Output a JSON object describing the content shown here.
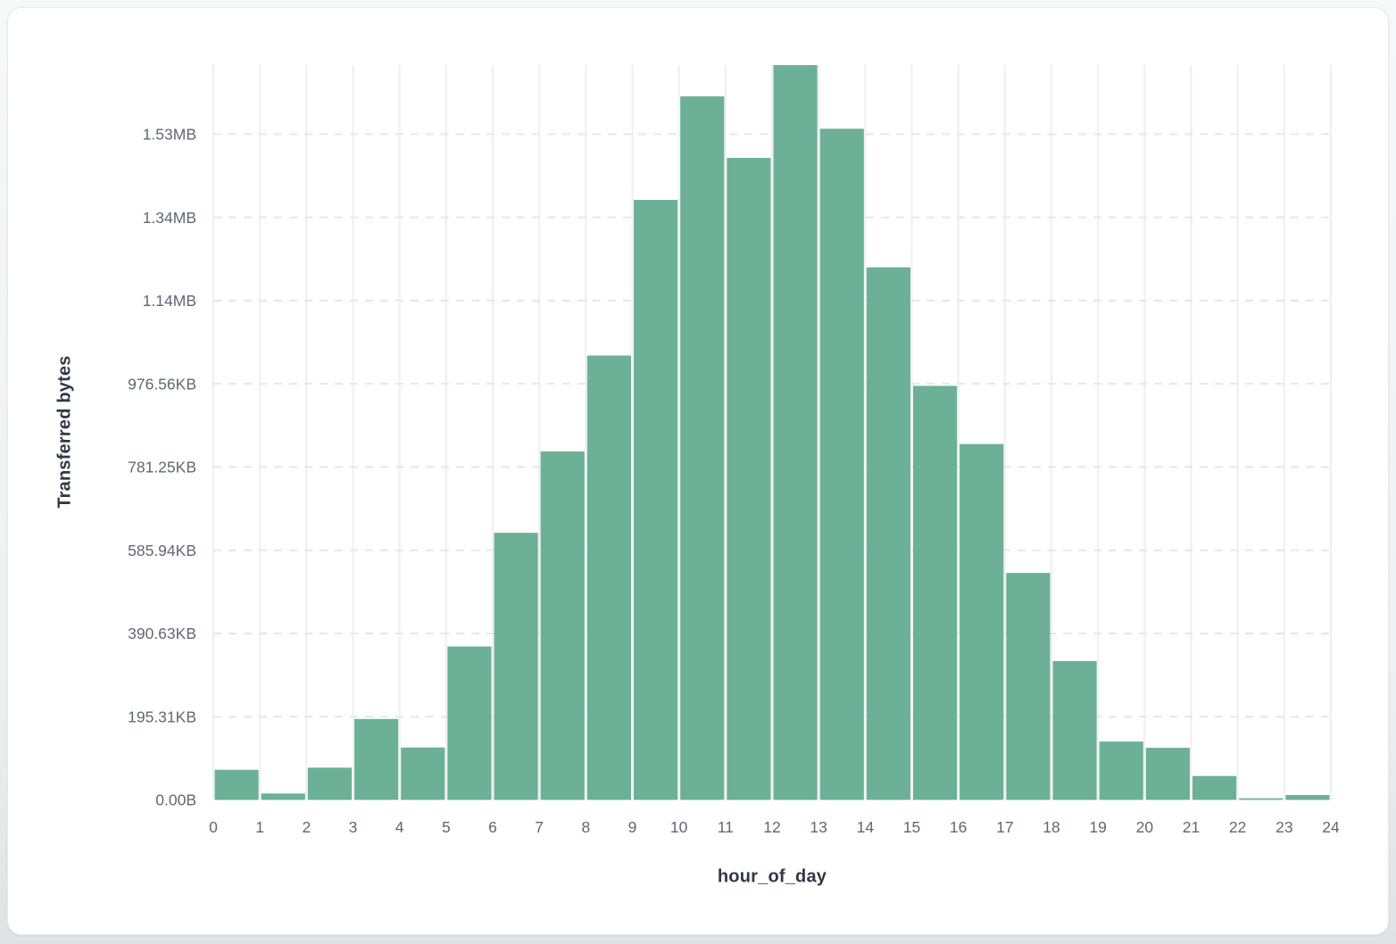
{
  "chart_data": {
    "type": "bar",
    "title": "",
    "xlabel": "hour_of_day",
    "ylabel": "Transferred bytes",
    "x_tick_labels": [
      "0",
      "1",
      "2",
      "3",
      "4",
      "5",
      "6",
      "7",
      "8",
      "9",
      "10",
      "11",
      "12",
      "13",
      "14",
      "15",
      "16",
      "17",
      "18",
      "19",
      "20",
      "21",
      "22",
      "23",
      "24"
    ],
    "hours": [
      0,
      1,
      2,
      3,
      4,
      5,
      6,
      7,
      8,
      9,
      10,
      11,
      12,
      13,
      14,
      15,
      16,
      17,
      18,
      19,
      20,
      21,
      22,
      23
    ],
    "values_bytes": [
      72400,
      15400,
      77500,
      194500,
      125900,
      368700,
      641900,
      837500,
      1067900,
      1442000,
      1690800,
      1543000,
      1765900,
      1613000,
      1280000,
      995100,
      855300,
      545500,
      333600,
      140200,
      125200,
      57400,
      3900,
      11800
    ],
    "y_ticks": [
      {
        "label": "0.00B",
        "bytes": 0
      },
      {
        "label": "195.31KB",
        "bytes": 200000
      },
      {
        "label": "390.63KB",
        "bytes": 400000
      },
      {
        "label": "585.94KB",
        "bytes": 600000
      },
      {
        "label": "781.25KB",
        "bytes": 800000
      },
      {
        "label": "976.56KB",
        "bytes": 1000000
      },
      {
        "label": "1.14MB",
        "bytes": 1200000
      },
      {
        "label": "1.34MB",
        "bytes": 1400000
      },
      {
        "label": "1.53MB",
        "bytes": 1600000
      }
    ],
    "ylim": [
      0,
      1765900
    ],
    "bar_color": "#6cb097",
    "grid": {
      "vertical_gridlines": "solid",
      "horizontal_gridlines": "dashed"
    },
    "legend_position": "none"
  },
  "colors": {
    "bar_fill": "#6cb097",
    "vertical_gridline": "#edeff3",
    "horizontal_gridline": "#e4e7eb",
    "tick_label_text": "#5f6874",
    "axis_title_text": "#313845",
    "card_background": "#ffffff",
    "card_border": "#e7e9ed",
    "page_background": "#eef0f3"
  }
}
